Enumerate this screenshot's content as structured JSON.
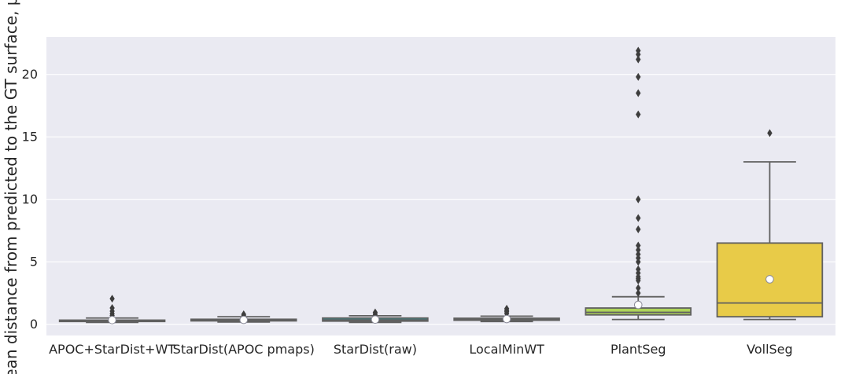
{
  "chart_data": {
    "type": "box",
    "title": "",
    "xlabel": "",
    "ylabel": "Mean distance from predicted to the GT surface, μm",
    "ylim": [
      -0.9,
      23.0
    ],
    "yticks": [
      0,
      5,
      10,
      15,
      20
    ],
    "grid": true,
    "categories": [
      "APOC+StarDist+WT",
      "StarDist(APOC pmaps)",
      "StarDist(raw)",
      "LocalMinWT",
      "PlantSeg",
      "VollSeg"
    ],
    "boxes": [
      {
        "whisker_low": 0.15,
        "q1": 0.22,
        "median": 0.27,
        "q3": 0.33,
        "whisker_high": 0.5,
        "mean": 0.34,
        "outliers": [
          0.7,
          0.85,
          1.05,
          1.3,
          2.05
        ],
        "color": "#5f3a8a"
      },
      {
        "whisker_low": 0.18,
        "q1": 0.27,
        "median": 0.33,
        "q3": 0.4,
        "whisker_high": 0.6,
        "mean": 0.35,
        "outliers": [
          0.72,
          0.8
        ],
        "color": "#4f5f8f"
      },
      {
        "whisker_low": 0.15,
        "q1": 0.25,
        "median": 0.35,
        "q3": 0.5,
        "whisker_high": 0.68,
        "mean": 0.38,
        "outliers": [
          0.8,
          0.95
        ],
        "color": "#2f8b8e"
      },
      {
        "whisker_low": 0.22,
        "q1": 0.32,
        "median": 0.38,
        "q3": 0.48,
        "whisker_high": 0.65,
        "mean": 0.42,
        "outliers": [
          0.85,
          1.0,
          1.1,
          1.25
        ],
        "color": "#3c9c72"
      },
      {
        "whisker_low": 0.38,
        "q1": 0.75,
        "median": 0.95,
        "q3": 1.3,
        "whisker_high": 2.2,
        "mean": 1.55,
        "outliers": [
          2.5,
          2.9,
          3.5,
          3.65,
          3.8,
          4.1,
          4.4,
          5.0,
          5.3,
          5.6,
          5.95,
          6.3,
          7.6,
          8.5,
          10.0,
          16.8,
          18.5,
          19.8,
          21.2,
          21.6,
          21.9
        ],
        "color": "#aed45a"
      },
      {
        "whisker_low": 0.38,
        "q1": 0.6,
        "median": 1.7,
        "q3": 6.5,
        "whisker_high": 13.0,
        "mean": 3.6,
        "outliers": [
          15.3
        ],
        "color": "#e8cb48"
      }
    ]
  }
}
